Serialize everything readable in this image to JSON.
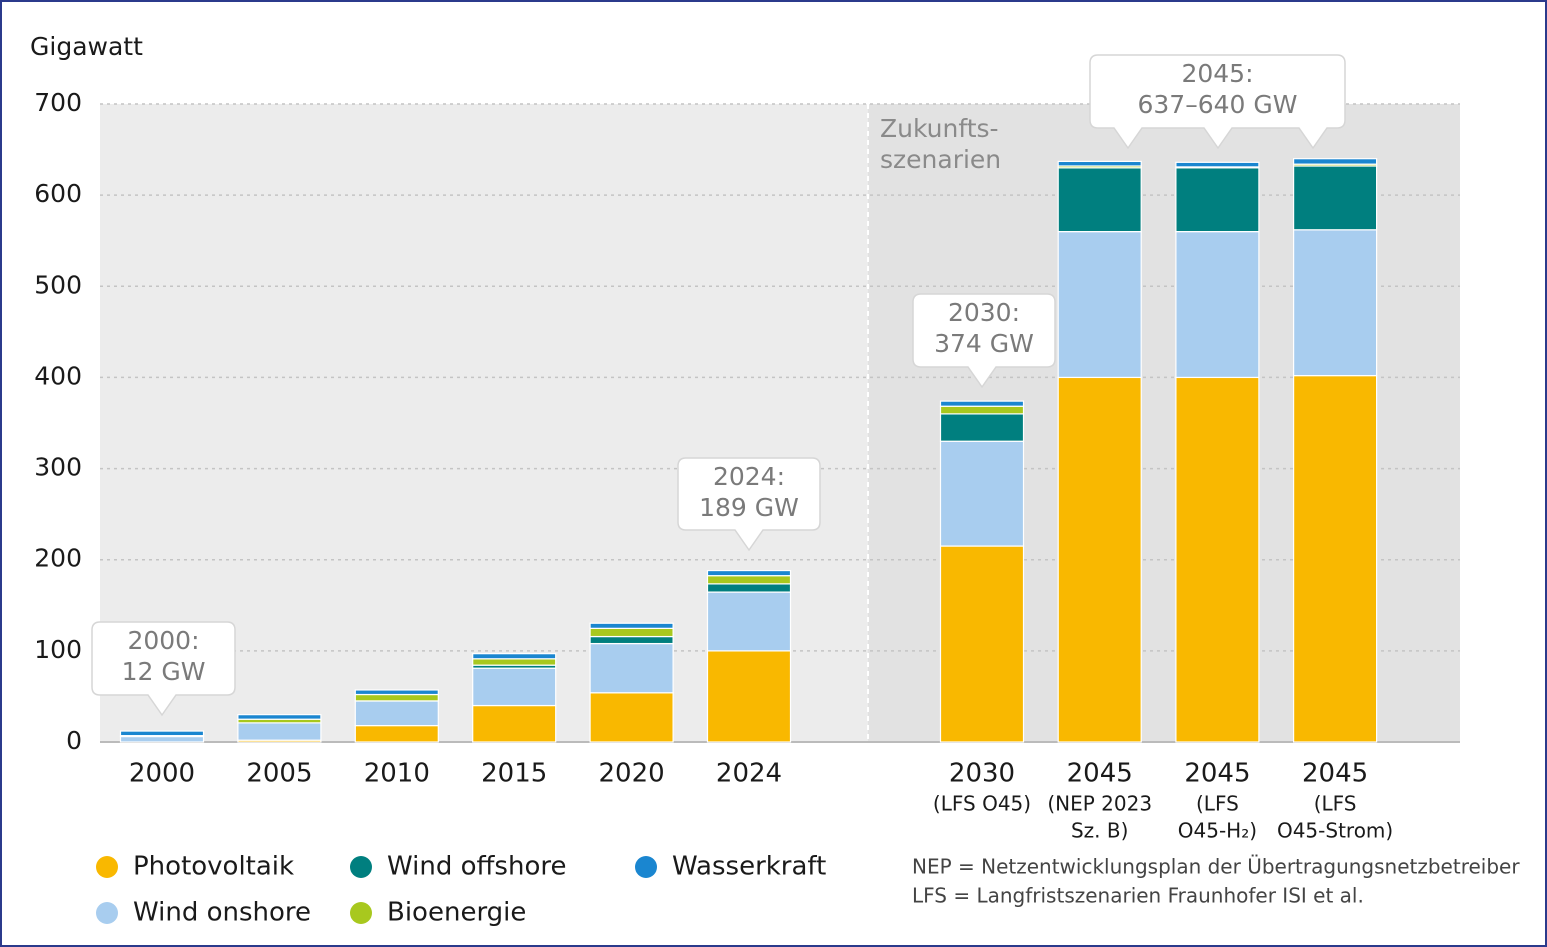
{
  "chart_data": {
    "type": "stacked_bar",
    "y_label": "Gigawatt",
    "categories": [
      [
        "2000"
      ],
      [
        "2005"
      ],
      [
        "2010"
      ],
      [
        "2015"
      ],
      [
        "2020"
      ],
      [
        "2024"
      ],
      [
        "2030",
        "(LFS O45)"
      ],
      [
        "2045",
        "(NEP 2023",
        "Sz. B)"
      ],
      [
        "2045",
        "(LFS",
        "O45-H₂)"
      ],
      [
        "2045",
        "(LFS",
        "O45-Strom)"
      ]
    ],
    "series": [
      {
        "name": "Photovoltaik",
        "color": "#f9b800",
        "values": [
          0,
          2,
          18,
          40,
          54,
          100,
          215,
          400,
          400,
          402
        ]
      },
      {
        "name": "Wind onshore",
        "color": "#a8cdef",
        "values": [
          6,
          19,
          27,
          41,
          54,
          64.5,
          115,
          160,
          160,
          160
        ]
      },
      {
        "name": "Wind offshore",
        "color": "#007f7f",
        "values": [
          0,
          0,
          0.1,
          3.3,
          7.7,
          9,
          30,
          70,
          70,
          70
        ]
      },
      {
        "name": "Bioenergie",
        "color": "#a8c81e",
        "values": [
          1,
          4,
          7,
          7,
          9,
          9,
          8.4,
          2,
          1,
          2
        ]
      },
      {
        "name": "Wasserkraft",
        "color": "#1a86d0",
        "values": [
          5,
          5,
          5,
          5.6,
          5.6,
          5.6,
          5.6,
          5,
          5,
          6
        ]
      }
    ],
    "ylim": [
      0,
      700
    ],
    "yticks": [
      0,
      100,
      200,
      300,
      400,
      500,
      600,
      700
    ],
    "grid": true,
    "region_label": [
      "Zukunfts-",
      "szenarien"
    ],
    "annotations": [
      [
        "2000:",
        "12 GW"
      ],
      [
        "2024:",
        "189 GW"
      ],
      [
        "2030:",
        "374 GW"
      ],
      [
        "2045:",
        "637–640 GW"
      ]
    ],
    "footnotes": [
      "NEP = Netzentwicklungsplan der Übertragungsnetzbetreiber",
      "LFS = Langfristszenarien Fraunhofer ISI et al."
    ]
  }
}
